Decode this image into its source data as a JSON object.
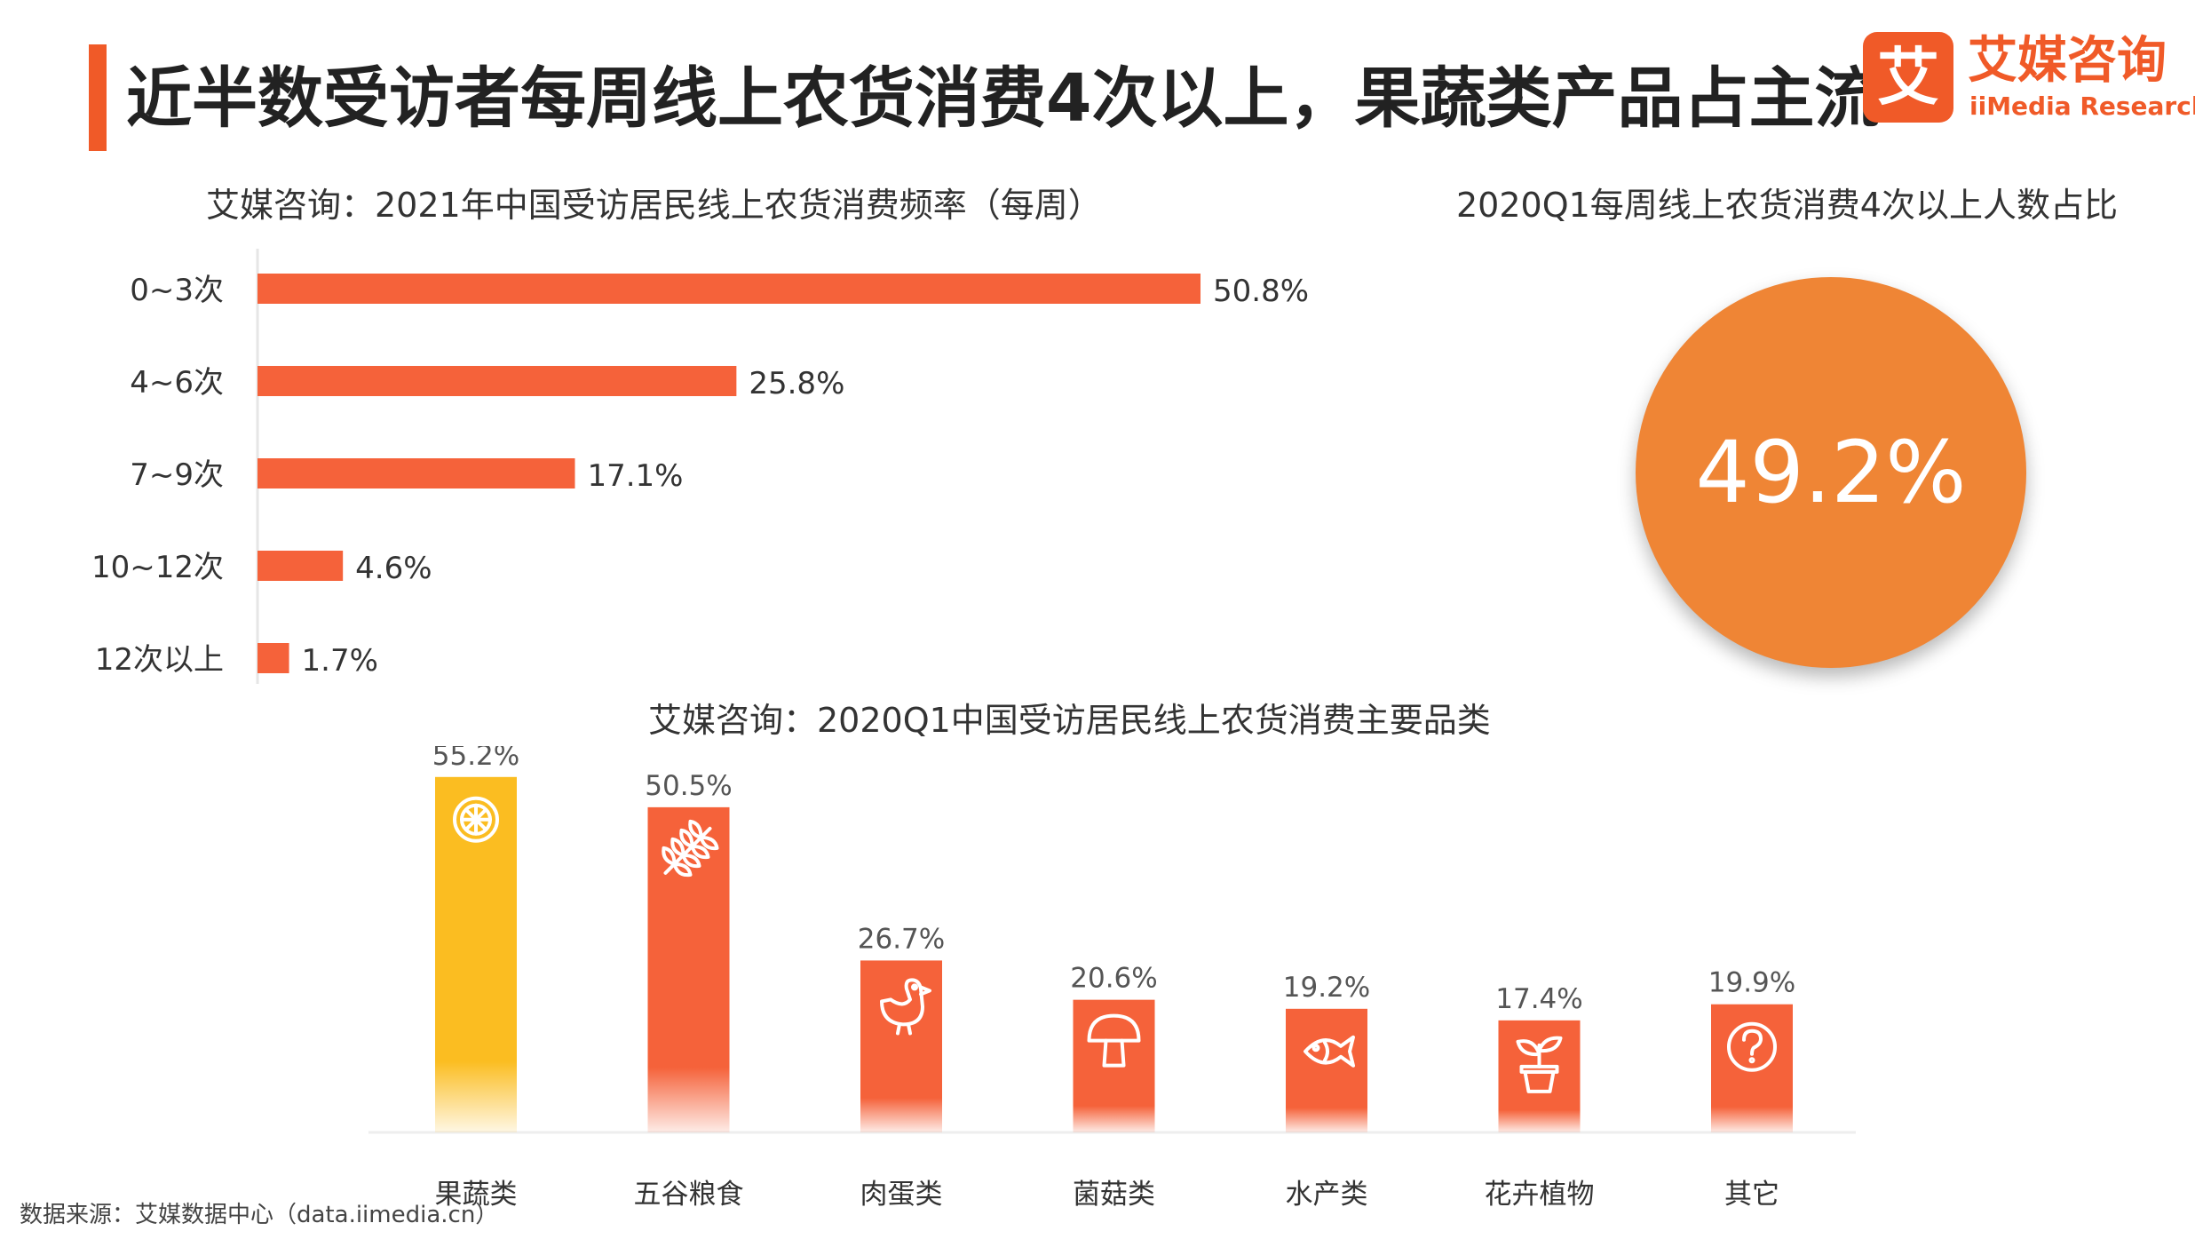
{
  "header": {
    "title": "近半数受访者每周线上农货消费4次以上，果蔬类产品占主流",
    "logo": {
      "mark": "艾",
      "cn": "艾媒咨询",
      "en": "iiMedia Research"
    }
  },
  "footer": {
    "source": "数据来源：艾媒数据中心（data.iimedia.cn）"
  },
  "colors": {
    "accent": "#f05a28",
    "bar": "#f5623a",
    "highlight": "#fbbd21",
    "circle": "#ef8535"
  },
  "chart_data": [
    {
      "type": "bar",
      "orientation": "horizontal",
      "title": "艾媒咨询：2021年中国受访居民线上农货消费频率（每周）",
      "categories": [
        "0~3次",
        "4~6次",
        "7~9次",
        "10~12次",
        "12次以上"
      ],
      "values": [
        50.8,
        25.8,
        17.1,
        4.6,
        1.7
      ],
      "value_labels": [
        "50.8%",
        "25.8%",
        "17.1%",
        "4.6%",
        "1.7%"
      ],
      "unit": "%"
    },
    {
      "type": "pie",
      "title": "2020Q1每周线上农货消费4次以上人数占比",
      "value": 49.2,
      "value_label": "49.2%"
    },
    {
      "type": "bar",
      "orientation": "vertical",
      "title": "艾媒咨询：2020Q1中国受访居民线上农货消费主要品类",
      "categories": [
        "果蔬类",
        "五谷粮食",
        "肉蛋类",
        "菌菇类",
        "水产类",
        "花卉植物",
        "其它"
      ],
      "values": [
        55.2,
        50.5,
        26.7,
        20.6,
        19.2,
        17.4,
        19.9
      ],
      "value_labels": [
        "55.2%",
        "50.5%",
        "26.7%",
        "20.6%",
        "19.2%",
        "17.4%",
        "19.9%"
      ],
      "icons": [
        "lemon-icon",
        "wheat-icon",
        "chicken-icon",
        "mushroom-icon",
        "fish-icon",
        "potted-plant-icon",
        "question-icon"
      ],
      "highlight_index": 0,
      "unit": "%"
    }
  ]
}
